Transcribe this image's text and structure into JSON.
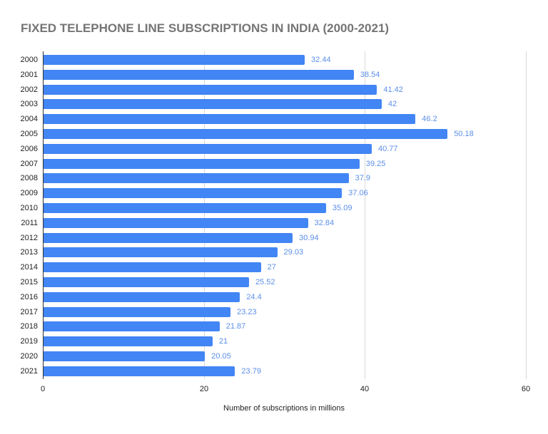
{
  "chart_data": {
    "type": "bar",
    "orientation": "horizontal",
    "title": "FIXED TELEPHONE LINE SUBSCRIPTIONS IN INDIA (2000-2021)",
    "xlabel": "Number of subscriptions in millions",
    "ylabel": "",
    "categories": [
      "2000",
      "2001",
      "2002",
      "2003",
      "2004",
      "2005",
      "2006",
      "2007",
      "2008",
      "2009",
      "2010",
      "2011",
      "2012",
      "2013",
      "2014",
      "2015",
      "2016",
      "2017",
      "2018",
      "2019",
      "2020",
      "2021"
    ],
    "values": [
      32.44,
      38.54,
      41.42,
      42,
      46.2,
      50.18,
      40.77,
      39.25,
      37.9,
      37.06,
      35.09,
      32.84,
      30.94,
      29.03,
      27,
      25.52,
      24.4,
      23.23,
      21.87,
      21,
      20.05,
      23.79
    ],
    "value_labels": [
      "32.44",
      "38.54",
      "41.42",
      "42",
      "46.2",
      "50.18",
      "40.77",
      "39.25",
      "37.9",
      "37.06",
      "35.09",
      "32.84",
      "30.94",
      "29.03",
      "27",
      "25.52",
      "24.4",
      "23.23",
      "21.87",
      "21",
      "20.05",
      "23.79"
    ],
    "xlim": [
      0,
      60
    ],
    "x_ticks": [
      "0",
      "20",
      "40",
      "60"
    ],
    "grid": true,
    "legend": "none",
    "colors": {
      "bar": "#4285f4",
      "value_label": "#5c8fe8",
      "title": "#757575",
      "grid": "#d9d9d9"
    }
  }
}
